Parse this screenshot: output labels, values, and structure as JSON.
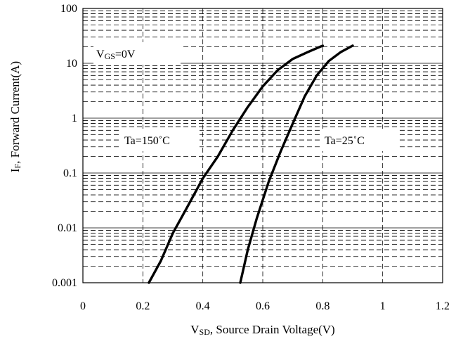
{
  "chart_data": {
    "type": "line",
    "title": "",
    "x_axis": {
      "label_prefix": "V",
      "label_sub": "SD",
      "label_rest": ", Source Drain Voltage(V)",
      "range": [
        0,
        1.2
      ],
      "ticks": [
        0,
        0.2,
        0.4,
        0.6,
        0.8,
        1,
        1.2
      ],
      "tick_labels": [
        "0",
        "0.2",
        "0.4",
        "0.6",
        "0.8",
        "1",
        "1.2"
      ]
    },
    "y_axis": {
      "label_prefix": "I",
      "label_sub": "F",
      "label_rest": ", Forward Current(A)",
      "scale": "log",
      "range": [
        0.001,
        100
      ],
      "ticks": [
        0.001,
        0.01,
        0.1,
        1,
        10,
        100
      ],
      "tick_labels": [
        "0.001",
        "0.01",
        "0.1",
        "1",
        "10",
        "100"
      ]
    },
    "grid": true,
    "series": [
      {
        "name": "Ta=150˚C",
        "x": [
          0.22,
          0.26,
          0.3,
          0.35,
          0.4,
          0.45,
          0.5,
          0.55,
          0.6,
          0.65,
          0.7,
          0.75,
          0.8
        ],
        "y": [
          0.001,
          0.0025,
          0.008,
          0.025,
          0.08,
          0.2,
          0.6,
          1.6,
          3.8,
          7.5,
          12,
          16,
          21
        ]
      },
      {
        "name": "Ta=25˚C",
        "x": [
          0.525,
          0.55,
          0.58,
          0.62,
          0.66,
          0.7,
          0.74,
          0.78,
          0.82,
          0.86,
          0.9
        ],
        "y": [
          0.001,
          0.004,
          0.015,
          0.07,
          0.25,
          0.8,
          2.5,
          6,
          11,
          16,
          21
        ]
      }
    ],
    "annotations": [
      {
        "prefix": "V",
        "sub": "GS",
        "rest": "=0V"
      },
      {
        "text": "Ta=150˚C"
      },
      {
        "text": "Ta=25˚C"
      }
    ]
  }
}
